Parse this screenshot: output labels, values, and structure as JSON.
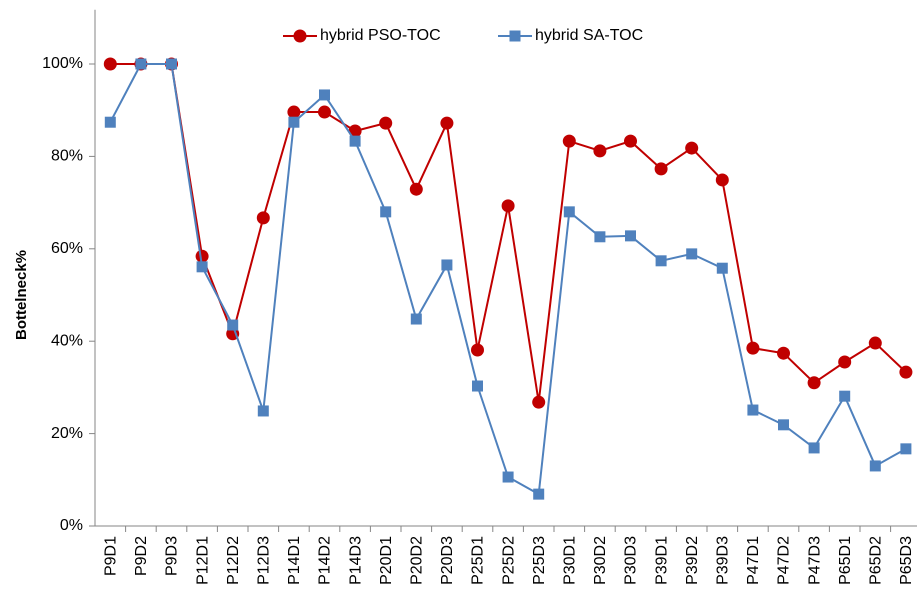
{
  "chart_data": {
    "type": "line",
    "y_label": "Bottelneck%",
    "categories": [
      "P9D1",
      "P9D2",
      "P9D3",
      "P12D1",
      "P12D2",
      "P12D3",
      "P14D1",
      "P14D2",
      "P14D3",
      "P20D1",
      "P20D2",
      "P20D3",
      "P25D1",
      "P25D2",
      "P25D3",
      "P30D1",
      "P30D2",
      "P30D3",
      "P39D1",
      "P39D2",
      "P39D3",
      "P47D1",
      "P47D2",
      "P47D3",
      "P65D1",
      "P65D2",
      "P65D3"
    ],
    "series": [
      {
        "name": "hybrid PSO-TOC",
        "color": "#c00000",
        "marker": "circle",
        "values": [
          100,
          100,
          100,
          58.4,
          41.6,
          66.7,
          89.6,
          89.6,
          85.5,
          87.2,
          72.9,
          87.2,
          38.1,
          69.3,
          26.8,
          83.3,
          81.2,
          83.3,
          77.3,
          81.8,
          74.9,
          38.5,
          37.4,
          31,
          35.5,
          39.6,
          33.3
        ]
      },
      {
        "name": "hybrid SA-TOC",
        "color": "#4f81bd",
        "marker": "square",
        "values": [
          87.4,
          100,
          100,
          56.1,
          43.5,
          24.9,
          87.4,
          93.3,
          83.3,
          68,
          44.8,
          56.5,
          30.3,
          10.6,
          6.9,
          68,
          62.6,
          62.8,
          57.4,
          58.9,
          55.8,
          25.1,
          21.9,
          16.9,
          28.1,
          13,
          16.7
        ]
      }
    ],
    "ylim": [
      0,
      110
    ],
    "yticks": [
      {
        "value": 0,
        "label": "0%"
      },
      {
        "value": 20,
        "label": "20%"
      },
      {
        "value": 40,
        "label": "40%"
      },
      {
        "value": 60,
        "label": "60%"
      },
      {
        "value": 80,
        "label": "80%"
      },
      {
        "value": 100,
        "label": "100%"
      }
    ],
    "legend": "top"
  }
}
